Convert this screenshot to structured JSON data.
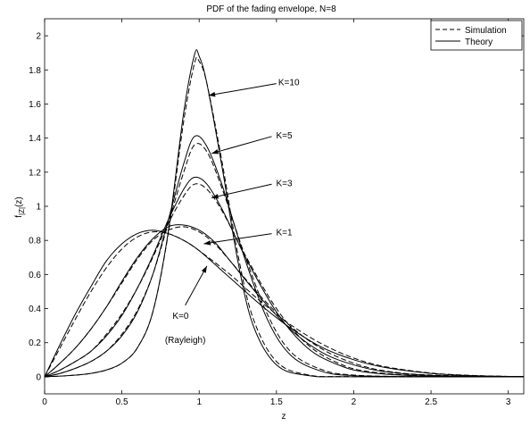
{
  "chart_data": {
    "type": "line",
    "title": "PDF of the fading envelope, N=8",
    "xlabel": "z",
    "ylabel_main": "f",
    "ylabel_sub": "|Z|",
    "ylabel_tail": "(z)",
    "xlim": [
      0,
      3.1
    ],
    "ylim": [
      -0.1,
      2.1
    ],
    "xticks": [
      0,
      0.5,
      1,
      1.5,
      2,
      2.5,
      3
    ],
    "xtick_labels": [
      "0",
      "0.5",
      "1",
      "1.5",
      "2",
      "2.5",
      "3"
    ],
    "yticks": [
      0,
      0.2,
      0.4,
      0.6,
      0.8,
      1,
      1.2,
      1.4,
      1.6,
      1.8,
      2
    ],
    "ytick_labels": [
      "0",
      "0.2",
      "0.4",
      "0.6",
      "0.8",
      "1",
      "1.2",
      "1.4",
      "1.6",
      "1.8",
      "2"
    ],
    "grid": false,
    "legend": {
      "position": "top-right",
      "entries": [
        {
          "label": "Simulation",
          "style": "dashed"
        },
        {
          "label": "Theory",
          "style": "solid"
        }
      ]
    },
    "series": [
      {
        "K": 0,
        "theory": [
          [
            0,
            0
          ],
          [
            0.1,
            0.19
          ],
          [
            0.2,
            0.37
          ],
          [
            0.3,
            0.53
          ],
          [
            0.4,
            0.68
          ],
          [
            0.5,
            0.78
          ],
          [
            0.6,
            0.84
          ],
          [
            0.7,
            0.86
          ],
          [
            0.8,
            0.84
          ],
          [
            0.9,
            0.8
          ],
          [
            1.0,
            0.74
          ],
          [
            1.2,
            0.58
          ],
          [
            1.4,
            0.42
          ],
          [
            1.6,
            0.28
          ],
          [
            1.8,
            0.17
          ],
          [
            2.0,
            0.1
          ],
          [
            2.2,
            0.055
          ],
          [
            2.5,
            0.02
          ],
          [
            2.8,
            0.006
          ],
          [
            3.1,
            0.001
          ]
        ],
        "simulation": [
          [
            0,
            0
          ],
          [
            0.1,
            0.17
          ],
          [
            0.2,
            0.34
          ],
          [
            0.3,
            0.5
          ],
          [
            0.4,
            0.64
          ],
          [
            0.5,
            0.75
          ],
          [
            0.6,
            0.82
          ],
          [
            0.7,
            0.85
          ],
          [
            0.8,
            0.84
          ],
          [
            0.9,
            0.8
          ],
          [
            1.0,
            0.74
          ],
          [
            1.2,
            0.6
          ],
          [
            1.4,
            0.44
          ],
          [
            1.6,
            0.3
          ],
          [
            1.8,
            0.19
          ],
          [
            2.0,
            0.11
          ],
          [
            2.2,
            0.06
          ],
          [
            2.5,
            0.022
          ],
          [
            2.8,
            0.007
          ],
          [
            3.1,
            0.001
          ]
        ]
      },
      {
        "K": 1,
        "theory": [
          [
            0,
            0
          ],
          [
            0.1,
            0.08
          ],
          [
            0.2,
            0.17
          ],
          [
            0.3,
            0.28
          ],
          [
            0.4,
            0.41
          ],
          [
            0.5,
            0.56
          ],
          [
            0.6,
            0.7
          ],
          [
            0.7,
            0.81
          ],
          [
            0.8,
            0.88
          ],
          [
            0.9,
            0.89
          ],
          [
            1.0,
            0.86
          ],
          [
            1.1,
            0.79
          ],
          [
            1.2,
            0.68
          ],
          [
            1.4,
            0.46
          ],
          [
            1.6,
            0.27
          ],
          [
            1.8,
            0.14
          ],
          [
            2.0,
            0.07
          ],
          [
            2.2,
            0.03
          ],
          [
            2.5,
            0.008
          ],
          [
            3.1,
            0.0005
          ]
        ],
        "simulation": [
          [
            0,
            0
          ],
          [
            0.1,
            0.08
          ],
          [
            0.2,
            0.17
          ],
          [
            0.3,
            0.28
          ],
          [
            0.4,
            0.41
          ],
          [
            0.5,
            0.55
          ],
          [
            0.6,
            0.69
          ],
          [
            0.7,
            0.8
          ],
          [
            0.8,
            0.86
          ],
          [
            0.9,
            0.88
          ],
          [
            1.0,
            0.85
          ],
          [
            1.1,
            0.78
          ],
          [
            1.2,
            0.68
          ],
          [
            1.4,
            0.47
          ],
          [
            1.6,
            0.29
          ],
          [
            1.8,
            0.16
          ],
          [
            2.0,
            0.08
          ],
          [
            2.2,
            0.035
          ],
          [
            2.5,
            0.01
          ],
          [
            3.1,
            0.0005
          ]
        ]
      },
      {
        "K": 3,
        "theory": [
          [
            0,
            0
          ],
          [
            0.1,
            0.04
          ],
          [
            0.2,
            0.09
          ],
          [
            0.3,
            0.15
          ],
          [
            0.4,
            0.24
          ],
          [
            0.5,
            0.36
          ],
          [
            0.6,
            0.52
          ],
          [
            0.7,
            0.71
          ],
          [
            0.8,
            0.92
          ],
          [
            0.9,
            1.1
          ],
          [
            0.97,
            1.17
          ],
          [
            1.05,
            1.13
          ],
          [
            1.15,
            0.98
          ],
          [
            1.3,
            0.7
          ],
          [
            1.5,
            0.38
          ],
          [
            1.7,
            0.17
          ],
          [
            1.9,
            0.07
          ],
          [
            2.1,
            0.025
          ],
          [
            2.5,
            0.003
          ],
          [
            3.1,
            0
          ]
        ],
        "simulation": [
          [
            0,
            0
          ],
          [
            0.1,
            0.04
          ],
          [
            0.2,
            0.09
          ],
          [
            0.3,
            0.15
          ],
          [
            0.4,
            0.25
          ],
          [
            0.5,
            0.37
          ],
          [
            0.6,
            0.52
          ],
          [
            0.7,
            0.7
          ],
          [
            0.8,
            0.9
          ],
          [
            0.9,
            1.06
          ],
          [
            0.97,
            1.13
          ],
          [
            1.05,
            1.1
          ],
          [
            1.15,
            0.97
          ],
          [
            1.3,
            0.71
          ],
          [
            1.5,
            0.4
          ],
          [
            1.7,
            0.19
          ],
          [
            1.9,
            0.08
          ],
          [
            2.1,
            0.03
          ],
          [
            2.5,
            0.004
          ],
          [
            3.1,
            0
          ]
        ]
      },
      {
        "K": 5,
        "theory": [
          [
            0,
            0
          ],
          [
            0.1,
            0.02
          ],
          [
            0.2,
            0.05
          ],
          [
            0.3,
            0.09
          ],
          [
            0.4,
            0.15
          ],
          [
            0.5,
            0.24
          ],
          [
            0.6,
            0.38
          ],
          [
            0.7,
            0.6
          ],
          [
            0.8,
            0.92
          ],
          [
            0.9,
            1.25
          ],
          [
            0.97,
            1.41
          ],
          [
            1.05,
            1.35
          ],
          [
            1.15,
            1.12
          ],
          [
            1.3,
            0.68
          ],
          [
            1.45,
            0.32
          ],
          [
            1.6,
            0.12
          ],
          [
            1.8,
            0.03
          ],
          [
            2.0,
            0.007
          ],
          [
            2.4,
            0.001
          ],
          [
            3.1,
            0
          ]
        ],
        "simulation": [
          [
            0,
            0
          ],
          [
            0.1,
            0.02
          ],
          [
            0.2,
            0.05
          ],
          [
            0.3,
            0.09
          ],
          [
            0.4,
            0.15
          ],
          [
            0.5,
            0.25
          ],
          [
            0.6,
            0.39
          ],
          [
            0.7,
            0.6
          ],
          [
            0.8,
            0.9
          ],
          [
            0.9,
            1.2
          ],
          [
            0.97,
            1.36
          ],
          [
            1.05,
            1.32
          ],
          [
            1.15,
            1.1
          ],
          [
            1.3,
            0.7
          ],
          [
            1.45,
            0.35
          ],
          [
            1.6,
            0.14
          ],
          [
            1.8,
            0.04
          ],
          [
            2.0,
            0.01
          ],
          [
            2.4,
            0.001
          ],
          [
            3.1,
            0
          ]
        ]
      },
      {
        "K": 10,
        "theory": [
          [
            0,
            0
          ],
          [
            0.1,
            0.004
          ],
          [
            0.2,
            0.01
          ],
          [
            0.3,
            0.02
          ],
          [
            0.4,
            0.04
          ],
          [
            0.5,
            0.08
          ],
          [
            0.6,
            0.17
          ],
          [
            0.7,
            0.38
          ],
          [
            0.8,
            0.85
          ],
          [
            0.9,
            1.55
          ],
          [
            0.97,
            1.89
          ],
          [
            1.0,
            1.88
          ],
          [
            1.05,
            1.72
          ],
          [
            1.15,
            1.22
          ],
          [
            1.25,
            0.68
          ],
          [
            1.35,
            0.3
          ],
          [
            1.5,
            0.07
          ],
          [
            1.7,
            0.008
          ],
          [
            2.0,
            0
          ],
          [
            3.1,
            0
          ]
        ],
        "simulation": [
          [
            0,
            0
          ],
          [
            0.1,
            0.004
          ],
          [
            0.2,
            0.01
          ],
          [
            0.3,
            0.02
          ],
          [
            0.4,
            0.04
          ],
          [
            0.5,
            0.08
          ],
          [
            0.6,
            0.17
          ],
          [
            0.7,
            0.38
          ],
          [
            0.8,
            0.84
          ],
          [
            0.9,
            1.5
          ],
          [
            0.97,
            1.84
          ],
          [
            1.0,
            1.85
          ],
          [
            1.05,
            1.72
          ],
          [
            1.15,
            1.25
          ],
          [
            1.25,
            0.72
          ],
          [
            1.35,
            0.34
          ],
          [
            1.5,
            0.09
          ],
          [
            1.7,
            0.012
          ],
          [
            2.0,
            0.001
          ],
          [
            3.1,
            0
          ]
        ]
      }
    ],
    "annotations": [
      {
        "text": "K=10",
        "arrow_to": [
          1.06,
          1.65
        ],
        "text_at": [
          1.58,
          1.73
        ]
      },
      {
        "text": "K=5",
        "arrow_to": [
          1.08,
          1.31
        ],
        "text_at": [
          1.55,
          1.42
        ]
      },
      {
        "text": "K=3",
        "arrow_to": [
          1.08,
          1.05
        ],
        "text_at": [
          1.55,
          1.14
        ]
      },
      {
        "text": "K=1",
        "arrow_to": [
          1.03,
          0.78
        ],
        "text_at": [
          1.55,
          0.85
        ]
      },
      {
        "text": "K=0",
        "arrow_to": [
          1.05,
          0.65
        ],
        "text_at": [
          0.88,
          0.36
        ],
        "arrow_from": [
          0.91,
          0.42
        ]
      },
      {
        "text": "(Rayleigh)",
        "text_at": [
          0.91,
          0.22
        ]
      }
    ]
  }
}
